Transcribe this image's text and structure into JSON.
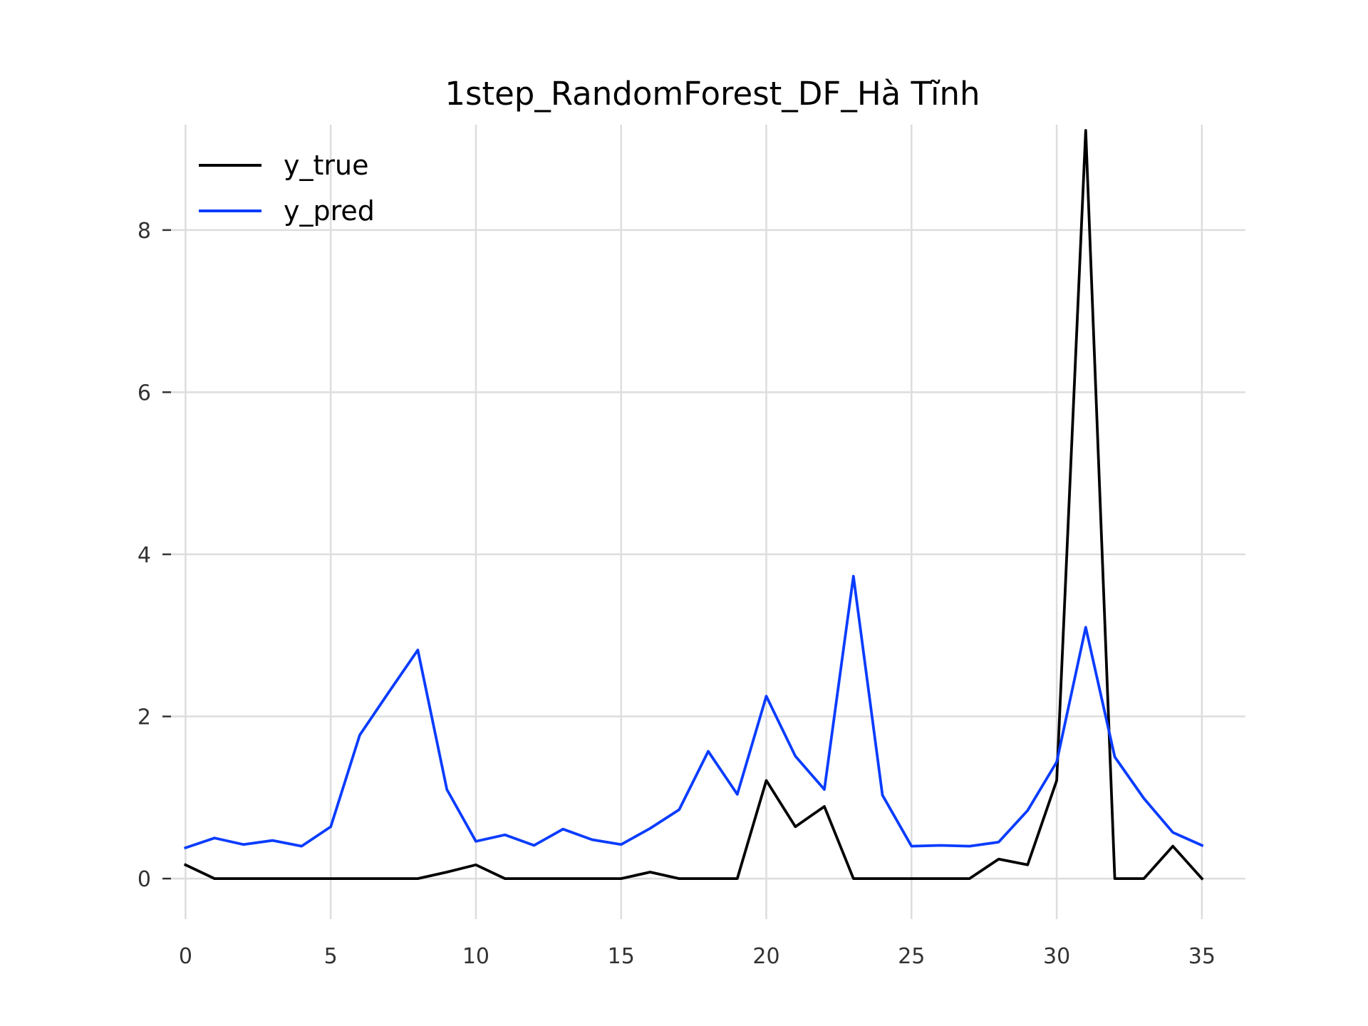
{
  "chart_data": {
    "type": "line",
    "title": "1step_RandomForest_DF_Hà Tĩnh",
    "xlabel": "",
    "ylabel": "",
    "xlim": [
      -0.5,
      36.5
    ],
    "ylim": [
      -0.5,
      9.3
    ],
    "x_ticks": [
      0,
      5,
      10,
      15,
      20,
      25,
      30,
      35
    ],
    "y_ticks": [
      0,
      2,
      4,
      6,
      8
    ],
    "grid": true,
    "legend_position": "top-left",
    "x": [
      0,
      1,
      2,
      3,
      4,
      5,
      6,
      7,
      8,
      9,
      10,
      11,
      12,
      13,
      14,
      15,
      16,
      17,
      18,
      19,
      20,
      21,
      22,
      23,
      24,
      25,
      26,
      27,
      28,
      29,
      30,
      31,
      32,
      33,
      34,
      35
    ],
    "series": [
      {
        "name": "y_true",
        "color": "#000000",
        "values": [
          0.17,
          0,
          0,
          0,
          0,
          0,
          0,
          0,
          0,
          0.08,
          0.17,
          0,
          0,
          0,
          0,
          0,
          0.08,
          0,
          0,
          0,
          1.21,
          0.64,
          0.89,
          0,
          0,
          0,
          0,
          0,
          0.24,
          0.17,
          1.21,
          9.23,
          0,
          0,
          0.4,
          0
        ]
      },
      {
        "name": "y_pred",
        "color": "#0a3cff",
        "values": [
          0.38,
          0.5,
          0.42,
          0.47,
          0.4,
          0.64,
          1.77,
          2.3,
          2.82,
          1.1,
          0.46,
          0.54,
          0.41,
          0.61,
          0.48,
          0.42,
          0.62,
          0.85,
          1.57,
          1.04,
          2.25,
          1.51,
          1.1,
          3.73,
          1.03,
          0.4,
          0.41,
          0.4,
          0.45,
          0.84,
          1.44,
          3.1,
          1.5,
          0.99,
          0.57,
          0.41
        ]
      }
    ]
  }
}
